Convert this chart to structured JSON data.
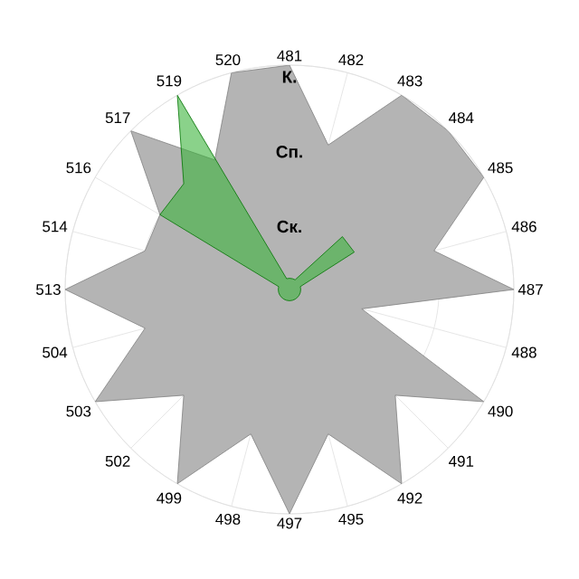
{
  "chart_data": {
    "type": "radar",
    "categories": [
      "481",
      "482",
      "483",
      "484",
      "485",
      "486",
      "487",
      "488",
      "490",
      "491",
      "492",
      "495",
      "497",
      "498",
      "499",
      "502",
      "503",
      "504",
      "513",
      "514",
      "516",
      "517",
      "519",
      "520"
    ],
    "ylim": [
      0,
      3
    ],
    "yticks": [
      {
        "value": 1,
        "label": "Ск."
      },
      {
        "value": 2,
        "label": "Сп."
      },
      {
        "value": 3,
        "label": "К."
      }
    ],
    "grid": true,
    "marker": "none",
    "series": [
      {
        "color": "#b4b4b4",
        "values": [
          3,
          2,
          3,
          3,
          3,
          2,
          3,
          1,
          3,
          2,
          3,
          2,
          3,
          2,
          3,
          2,
          3,
          2,
          3,
          2,
          2,
          3,
          2,
          3
        ]
      },
      {
        "color": "#3cb43c",
        "values": [
          0.15,
          0.15,
          0.15,
          1,
          1,
          0.15,
          0.15,
          0.15,
          0.15,
          0.15,
          0.15,
          0.15,
          0.15,
          0.15,
          0.15,
          0.15,
          0.15,
          0.15,
          0.15,
          0.15,
          2,
          2,
          3,
          0.15
        ]
      }
    ]
  }
}
